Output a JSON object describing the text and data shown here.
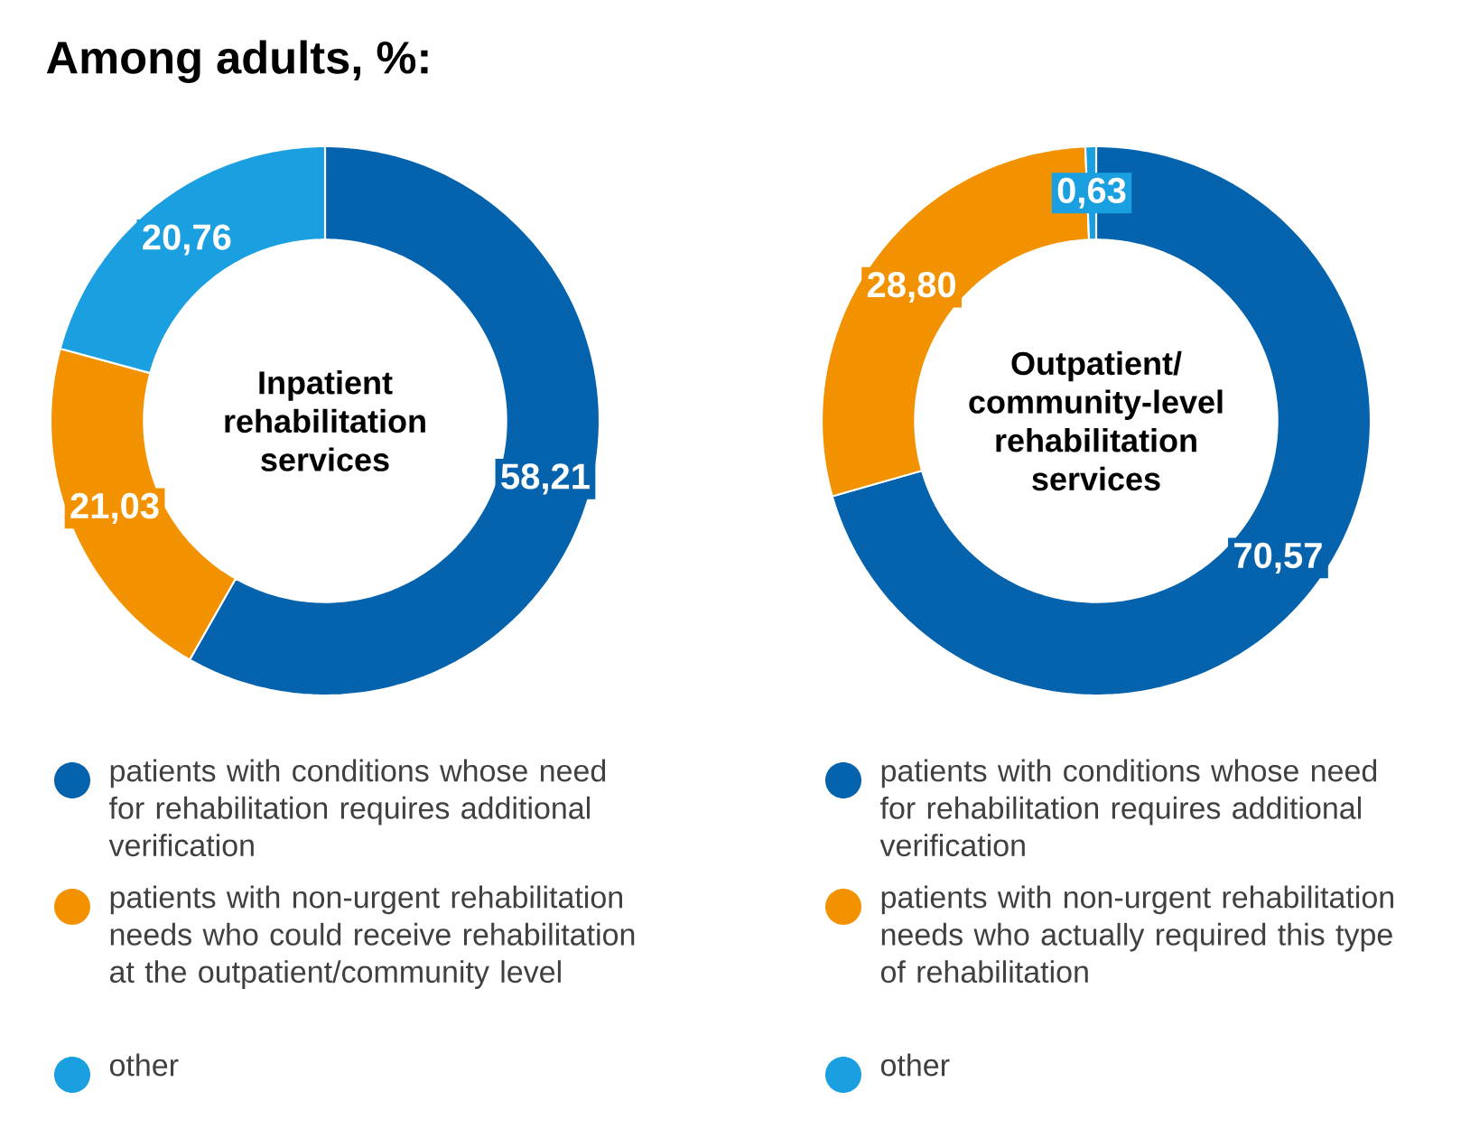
{
  "chart_data": [
    {
      "type": "donut",
      "title": "Among adults, %:",
      "annotations": [
        "Inpatient rehabilitation services"
      ],
      "categories": [
        "patients with conditions whose need for rehabilitation requires additional verification",
        "patients with non-urgent rehabilitation needs who could receive rehabilitation at the outpatient/community level",
        "other"
      ],
      "values": [
        58.21,
        21.03,
        20.76
      ],
      "value_labels": [
        "58,21",
        "21,03",
        "20,76"
      ],
      "colors": [
        "#0563ad",
        "#f39200",
        "#1a9fe0"
      ],
      "legend": "bottom"
    },
    {
      "type": "donut",
      "annotations": [
        "Outpatient/ community-level rehabilitation services"
      ],
      "categories": [
        "patients with conditions whose need for rehabilitation requires additional verification",
        "patients with non-urgent rehabilitation needs who actually required this type of rehabilitation",
        "other"
      ],
      "values": [
        70.57,
        28.8,
        0.63
      ],
      "value_labels": [
        "70,57",
        "28,80",
        "0,63"
      ],
      "colors": [
        "#0563ad",
        "#f39200",
        "#1a9fe0"
      ],
      "legend": "bottom"
    }
  ]
}
